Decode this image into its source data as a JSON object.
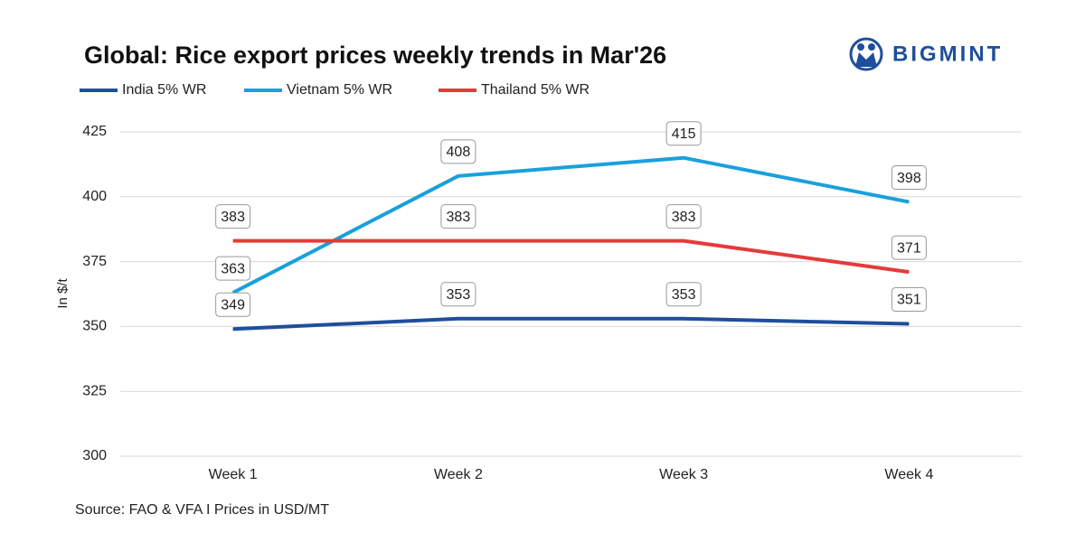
{
  "chart_data": {
    "type": "line",
    "title": "Global: Rice export prices weekly trends in Mar'26",
    "logo": "BIGMINT",
    "y_label": "In $/t",
    "source": "Source: FAO & VFA I Prices in USD/MT",
    "categories": [
      "Week 1",
      "Week 2",
      "Week 3",
      "Week 4"
    ],
    "series": [
      {
        "name": "India 5% WR",
        "color": "#1f4e9c",
        "values": [
          349,
          353,
          353,
          351
        ]
      },
      {
        "name": "Vietnam 5% WR",
        "color": "#1aa0dc",
        "values": [
          363,
          408,
          415,
          398
        ]
      },
      {
        "name": "Thailand 5% WR",
        "color": "#e63a3a",
        "values": [
          383,
          383,
          383,
          371
        ]
      }
    ],
    "ylim": [
      300,
      425
    ],
    "yticks": [
      300,
      325,
      350,
      375,
      400,
      425
    ],
    "grid": true
  }
}
